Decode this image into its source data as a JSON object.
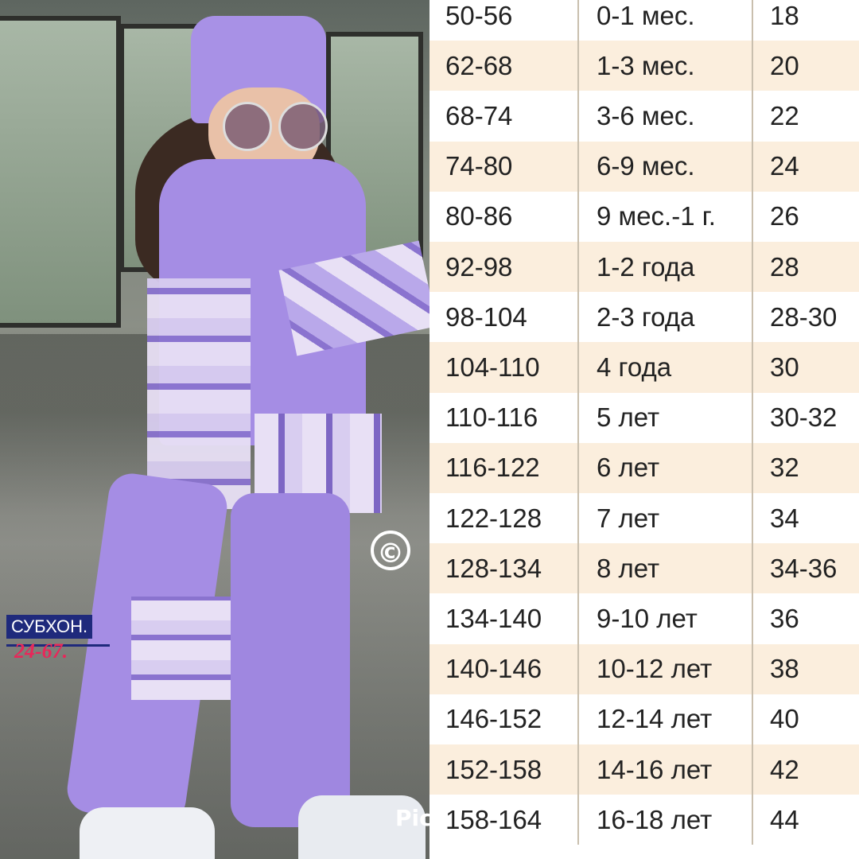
{
  "watermark": {
    "name": "СУБХОН.",
    "number": "24-67.",
    "copyright_symbol": "©",
    "corner_text": "Pic"
  },
  "size_table": {
    "rows": [
      [
        "50-56",
        "0-1 мес.",
        "18"
      ],
      [
        "62-68",
        "1-3 мес.",
        "20"
      ],
      [
        "68-74",
        "3-6 мес.",
        "22"
      ],
      [
        "74-80",
        "6-9 мес.",
        "24"
      ],
      [
        "80-86",
        "9 мес.-1 г.",
        "26"
      ],
      [
        "92-98",
        "1-2 года",
        "28"
      ],
      [
        "98-104",
        "2-3 года",
        "28-30"
      ],
      [
        "104-110",
        "4 года",
        "30"
      ],
      [
        "110-116",
        "5 лет",
        "30-32"
      ],
      [
        "116-122",
        "6 лет",
        "32"
      ],
      [
        "122-128",
        "7 лет",
        "34"
      ],
      [
        "128-134",
        "8 лет",
        "34-36"
      ],
      [
        "134-140",
        "9-10 лет",
        "36"
      ],
      [
        "140-146",
        "10-12 лет",
        "38"
      ],
      [
        "146-152",
        "12-14 лет",
        "40"
      ],
      [
        "152-158",
        "14-16 лет",
        "42"
      ],
      [
        "158-164",
        "16-18 лет",
        "44"
      ]
    ],
    "colors": {
      "alt_row": "#fbeedd",
      "divider": "#c9bfae"
    }
  }
}
